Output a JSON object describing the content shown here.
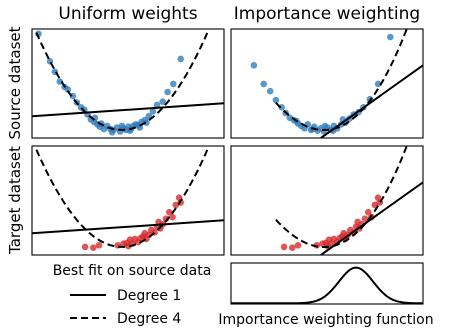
{
  "figure": {
    "col_titles": [
      "Uniform weights",
      "Importance weighting"
    ],
    "row_labels": [
      "Source dataset",
      "Target dataset"
    ],
    "legend": {
      "title": "Best fit on source data",
      "entries": [
        {
          "label": "Degree 1",
          "style": "solid"
        },
        {
          "label": "Degree 4",
          "style": "dashed"
        }
      ]
    },
    "weight_panel_label": "Importance weighting function"
  },
  "colors": {
    "source": "#2b7bba",
    "target": "#d62728",
    "line": "#000000"
  },
  "chart_data": [
    {
      "type": "scatter",
      "panel": "source-uniform",
      "grid": false,
      "xlim": [
        -1.1,
        1.25
      ],
      "ylim": [
        -0.05,
        1.3
      ],
      "series": [
        {
          "style": "points",
          "color": "#2b7bba",
          "x": [
            -1.02,
            -0.88,
            -0.82,
            -0.76,
            -0.7,
            -0.66,
            -0.6,
            -0.55,
            -0.5,
            -0.46,
            -0.42,
            -0.38,
            -0.34,
            -0.3,
            -0.27,
            -0.22,
            -0.18,
            -0.14,
            -0.1,
            -0.06,
            -0.02,
            0.02,
            0.05,
            0.08,
            0.11,
            0.14,
            0.17,
            0.2,
            0.24,
            0.28,
            0.33,
            0.38,
            0.43,
            0.5,
            0.56,
            0.63,
            0.72,
            -0.25,
            -0.12,
            0.0,
            0.1,
            0.22,
            -0.33,
            0.3
          ],
          "y": [
            1.24,
            0.9,
            0.77,
            0.65,
            0.58,
            0.55,
            0.47,
            0.39,
            0.33,
            0.3,
            0.24,
            0.18,
            0.15,
            0.12,
            0.09,
            0.06,
            0.1,
            0.06,
            0.05,
            0.08,
            0.03,
            0.07,
            0.05,
            0.09,
            0.06,
            0.1,
            0.12,
            0.11,
            0.15,
            0.17,
            0.22,
            0.28,
            0.36,
            0.4,
            0.52,
            0.62,
            0.93,
            0.13,
            0.02,
            0.1,
            0.04,
            0.08,
            0.2,
            0.14
          ]
        },
        {
          "style": "solid",
          "color": "#000000",
          "x": [
            -1.1,
            1.25
          ],
          "y": [
            0.22,
            0.38
          ]
        },
        {
          "style": "dashed",
          "color": "#000000",
          "poly": [
            0.05,
            0.0,
            1.1,
            0.0,
            0.0
          ]
        }
      ]
    },
    {
      "type": "scatter",
      "panel": "source-weighted",
      "grid": false,
      "xlim": [
        -1.1,
        1.25
      ],
      "ylim": [
        -0.05,
        1.3
      ],
      "series": [
        {
          "style": "points",
          "color": "#2b7bba",
          "x": [
            -0.82,
            -0.7,
            -0.62,
            -0.55,
            -0.48,
            -0.43,
            -0.38,
            -0.33,
            -0.28,
            -0.24,
            -0.2,
            -0.16,
            -0.12,
            -0.08,
            -0.04,
            0.0,
            0.04,
            0.08,
            0.12,
            0.16,
            0.2,
            0.25,
            0.3,
            0.35,
            0.4,
            0.46,
            0.52,
            0.6,
            0.7,
            0.85,
            -0.3,
            -0.1,
            0.05,
            0.15,
            0.27
          ],
          "y": [
            0.85,
            0.62,
            0.53,
            0.42,
            0.33,
            0.26,
            0.2,
            0.17,
            0.13,
            0.1,
            0.07,
            0.12,
            0.05,
            0.09,
            0.04,
            0.07,
            0.03,
            0.08,
            0.05,
            0.1,
            0.07,
            0.12,
            0.14,
            0.19,
            0.24,
            0.27,
            0.33,
            0.43,
            0.62,
            1.2,
            0.16,
            0.06,
            0.1,
            0.04,
            0.18
          ]
        },
        {
          "style": "solid",
          "color": "#000000",
          "x": [
            0.0,
            1.25
          ],
          "y": [
            -0.05,
            0.85
          ]
        },
        {
          "style": "dashed",
          "color": "#000000",
          "poly": [
            0.05,
            -0.08,
            1.05,
            0.15,
            0.0
          ],
          "xrange": [
            -0.55,
            1.25
          ]
        }
      ]
    },
    {
      "type": "scatter",
      "panel": "target-uniform",
      "grid": false,
      "xlim": [
        -1.1,
        1.25
      ],
      "ylim": [
        -0.05,
        1.3
      ],
      "series": [
        {
          "style": "points",
          "color": "#d62728",
          "x": [
            -0.45,
            -0.35,
            -0.28,
            -0.05,
            0.02,
            0.06,
            0.1,
            0.13,
            0.16,
            0.2,
            0.23,
            0.26,
            0.3,
            0.33,
            0.36,
            0.4,
            0.43,
            0.47,
            0.5,
            0.54,
            0.58,
            0.62,
            0.66,
            0.7,
            0.72,
            0.08,
            0.28,
            0.45
          ],
          "y": [
            0.05,
            0.04,
            0.07,
            0.07,
            0.09,
            0.1,
            0.14,
            0.09,
            0.15,
            0.11,
            0.16,
            0.18,
            0.15,
            0.2,
            0.26,
            0.23,
            0.3,
            0.28,
            0.33,
            0.4,
            0.48,
            0.42,
            0.57,
            0.66,
            0.6,
            0.06,
            0.22,
            0.36
          ]
        },
        {
          "style": "solid",
          "color": "#000000",
          "x": [
            -1.1,
            1.25
          ],
          "y": [
            0.22,
            0.38
          ]
        },
        {
          "style": "dashed",
          "color": "#000000",
          "poly": [
            0.05,
            0.0,
            1.1,
            0.0,
            0.0
          ]
        }
      ]
    },
    {
      "type": "scatter",
      "panel": "target-weighted",
      "grid": false,
      "xlim": [
        -1.1,
        1.25
      ],
      "ylim": [
        -0.05,
        1.3
      ],
      "series": [
        {
          "style": "points",
          "color": "#d62728",
          "x": [
            -0.45,
            -0.35,
            -0.28,
            -0.05,
            0.02,
            0.06,
            0.1,
            0.13,
            0.16,
            0.2,
            0.23,
            0.26,
            0.3,
            0.33,
            0.36,
            0.4,
            0.43,
            0.47,
            0.5,
            0.54,
            0.58,
            0.62,
            0.66,
            0.7,
            0.72,
            0.08,
            0.28,
            0.45
          ],
          "y": [
            0.05,
            0.04,
            0.07,
            0.07,
            0.09,
            0.1,
            0.14,
            0.09,
            0.15,
            0.11,
            0.16,
            0.18,
            0.15,
            0.2,
            0.26,
            0.23,
            0.3,
            0.28,
            0.33,
            0.4,
            0.48,
            0.42,
            0.57,
            0.66,
            0.6,
            0.06,
            0.22,
            0.36
          ]
        },
        {
          "style": "solid",
          "color": "#000000",
          "x": [
            0.0,
            1.25
          ],
          "y": [
            -0.05,
            0.85
          ]
        },
        {
          "style": "dashed",
          "color": "#000000",
          "poly": [
            0.05,
            -0.08,
            1.05,
            0.15,
            0.0
          ],
          "xrange": [
            -0.55,
            1.25
          ]
        }
      ]
    },
    {
      "type": "line",
      "panel": "importance-weighting-function",
      "grid": false,
      "xlim": [
        -1.1,
        1.25
      ],
      "ylim": [
        0,
        1.15
      ],
      "series": [
        {
          "style": "solid",
          "color": "#000000",
          "gaussian": {
            "center": 0.43,
            "sigma": 0.21,
            "peak": 1.0
          }
        }
      ]
    }
  ]
}
